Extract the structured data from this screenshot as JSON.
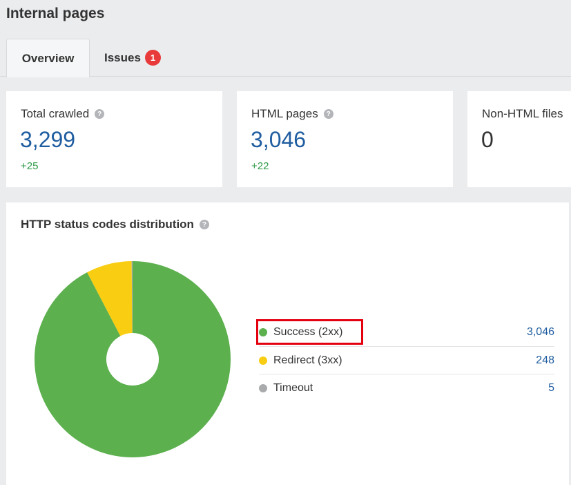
{
  "page_title": "Internal pages",
  "tabs": {
    "overview": "Overview",
    "issues": "Issues",
    "issues_badge": "1"
  },
  "cards": [
    {
      "label": "Total crawled",
      "value": "3,299",
      "delta": "+25"
    },
    {
      "label": "HTML pages",
      "value": "3,046",
      "delta": "+22"
    },
    {
      "label": "Non-HTML files",
      "value": "0",
      "delta": ""
    }
  ],
  "panel": {
    "title": "HTTP status codes distribution"
  },
  "chart_data": {
    "type": "pie",
    "donut": true,
    "title": "HTTP status codes distribution",
    "categories": [
      "Success (2xx)",
      "Redirect (3xx)",
      "Timeout"
    ],
    "values": [
      3046,
      248,
      5
    ],
    "value_labels": [
      "3,046",
      "248",
      "5"
    ],
    "colors": [
      "#5cb04e",
      "#f8cd12",
      "#a9abad"
    ],
    "legend_position": "right",
    "highlighted": "Success (2xx)"
  }
}
